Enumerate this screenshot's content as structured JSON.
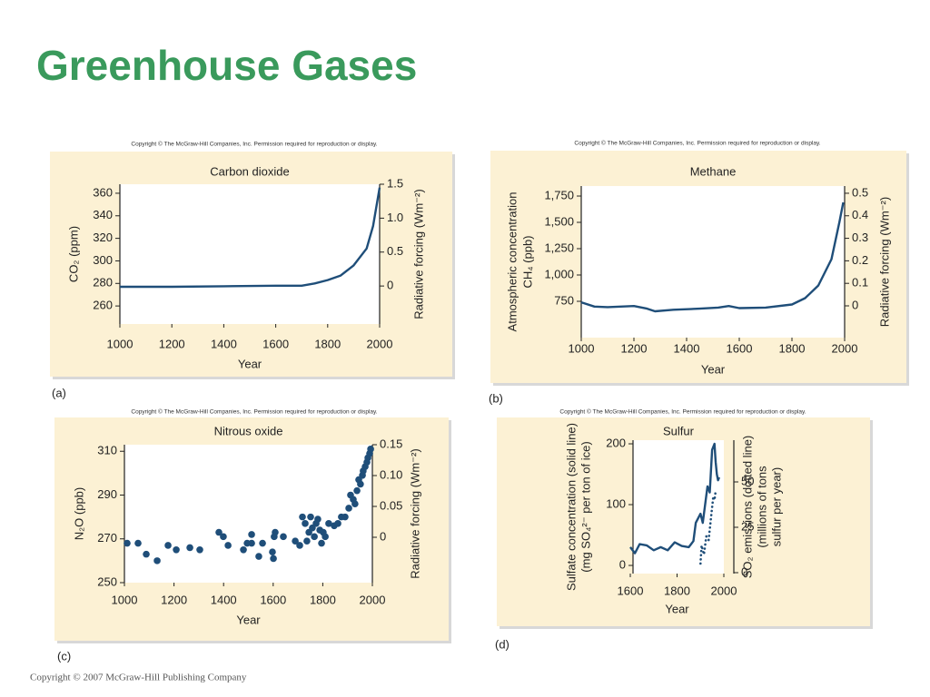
{
  "title": "Greenhouse Gases",
  "footer": "Copyright © 2007 McGraw-Hill Publishing Company",
  "chart_data": [
    {
      "type": "line",
      "panel_label": "(a)",
      "copyright": "Copyright © The McGraw-Hill Companies, Inc. Permission required for reproduction or display.",
      "title": "Carbon dioxide",
      "xlabel": "Year",
      "ylabel": [
        "CO₂ (ppm)"
      ],
      "y2label": [
        "Radiative forcing (Wm⁻²)"
      ],
      "xlim": [
        1000,
        2000
      ],
      "xticks": [
        1000,
        1200,
        1400,
        1600,
        1800,
        2000
      ],
      "ylim": [
        244,
        368
      ],
      "yticks": [
        260,
        280,
        300,
        320,
        340,
        360
      ],
      "y2lim": [
        -0.56,
        1.5
      ],
      "y2ticks": [
        0,
        0.5,
        {
          "value": 1,
          "label": "1.0"
        },
        1.5
      ],
      "series": [
        {
          "color": "#1f4e79",
          "x": [
            1000,
            1200,
            1400,
            1600,
            1700,
            1750,
            1800,
            1850,
            1900,
            1950,
            1975,
            2000
          ],
          "values": [
            277,
            277,
            277.5,
            278,
            278,
            280,
            283,
            287,
            296,
            311,
            331,
            365
          ]
        }
      ]
    },
    {
      "type": "line",
      "panel_label": "(b)",
      "copyright": "Copyright © The McGraw-Hill Companies, Inc. Permission required for reproduction or display.",
      "title": "Methane",
      "xlabel": "Year",
      "ylabel": [
        "Atmospheric concentration",
        "CH₄ (ppb)"
      ],
      "y2label": [
        "Radiative forcing (Wm⁻²)"
      ],
      "xlim": [
        1000,
        2000
      ],
      "xticks": [
        1000,
        1200,
        1400,
        1600,
        1800,
        2000
      ],
      "ylim": [
        405,
        1845
      ],
      "yticks": [
        750,
        {
          "value": 1000,
          "label": "1,000"
        },
        {
          "value": 1250,
          "label": "1,250"
        },
        {
          "value": 1500,
          "label": "1,500"
        },
        {
          "value": 1750,
          "label": "1,750"
        }
      ],
      "y2lim": [
        -0.141,
        0.532
      ],
      "y2ticks": [
        0,
        0.1,
        0.2,
        0.3,
        0.4,
        0.5
      ],
      "series": [
        {
          "color": "#1f4e79",
          "x": [
            1000,
            1050,
            1100,
            1200,
            1250,
            1280,
            1350,
            1450,
            1520,
            1560,
            1600,
            1700,
            1800,
            1850,
            1900,
            1950,
            1980,
            1995
          ],
          "values": [
            740,
            700,
            695,
            705,
            680,
            655,
            670,
            680,
            690,
            705,
            685,
            690,
            720,
            780,
            900,
            1150,
            1500,
            1690
          ]
        }
      ]
    },
    {
      "type": "scatter",
      "panel_label": "(c)",
      "copyright": "Copyright © The McGraw-Hill Companies, Inc. Permission required for reproduction or display.",
      "title": "Nitrous oxide",
      "xlabel": "Year",
      "ylabel": [
        "N₂O (ppb)"
      ],
      "y2label": [
        "Radiative forcing (Wm⁻²)"
      ],
      "xlim": [
        1000,
        2000
      ],
      "xticks": [
        1000,
        1200,
        1400,
        1600,
        1800,
        2000
      ],
      "ylim": [
        250,
        313
      ],
      "yticks": [
        250,
        270,
        290,
        310
      ],
      "y2lim": [
        -0.0735,
        0.15
      ],
      "y2ticks": [
        0,
        {
          "value": 0.05,
          "label": "0.05"
        },
        {
          "value": 0.1,
          "label": "0.10"
        },
        0.15
      ],
      "series": [
        {
          "color": "#1f4e79",
          "x": [
            1011,
            1055,
            1088,
            1132,
            1176,
            1209,
            1264,
            1304,
            1381,
            1399,
            1418,
            1480,
            1495,
            1513,
            1513,
            1542,
            1557,
            1597,
            1601,
            1608,
            1604,
            1641,
            1689,
            1707,
            1718,
            1729,
            1736,
            1744,
            1751,
            1758,
            1766,
            1773,
            1780,
            1788,
            1795,
            1802,
            1810,
            1824,
            1846,
            1861,
            1875,
            1890,
            1905,
            1912,
            1923,
            1930,
            1938,
            1945,
            1952,
            1960,
            1963,
            1971,
            1978,
            1982,
            1989,
            1993
          ],
          "values": [
            268,
            268,
            263,
            260,
            267,
            265,
            266,
            265,
            273,
            271,
            267,
            265,
            268,
            272,
            268,
            262,
            268,
            264,
            261,
            273,
            271,
            271,
            269,
            267,
            280,
            277,
            269,
            273,
            280,
            275,
            271,
            277,
            279,
            274,
            268,
            273,
            271,
            277,
            276,
            277,
            280,
            280,
            284,
            290,
            288,
            286,
            292,
            297,
            295,
            299,
            301,
            303,
            305,
            307,
            309,
            311
          ]
        }
      ]
    },
    {
      "type": "line",
      "panel_label": "(d)",
      "copyright": "Copyright © The McGraw-Hill Companies, Inc. Permission required for reproduction or display.",
      "title": "Sulfur",
      "xlabel": "Year",
      "ylabel": [
        "Sulfate concentration (solid line)",
        "(mg SO₄²⁻ per ton of ice)"
      ],
      "y2label": [
        "SO₂ emissions (dotted line)",
        "(millions of tons",
        "sulfur per year)"
      ],
      "xlim": [
        1600,
        2000
      ],
      "xticks": [
        1600,
        1800,
        2000
      ],
      "ylim": [
        -13.4,
        206
      ],
      "yticks": [
        0,
        100,
        200
      ],
      "y2lim": [
        -0.5,
        73
      ],
      "y2ticks": [
        0,
        25,
        50
      ],
      "series": [
        {
          "color": "#1f4e79",
          "x": [
            1600,
            1620,
            1640,
            1670,
            1700,
            1730,
            1760,
            1790,
            1820,
            1850,
            1870,
            1880,
            1900,
            1910,
            1930,
            1940,
            1950,
            1960,
            1965,
            1970,
            1975,
            1980
          ],
          "values": [
            30,
            20,
            35,
            33,
            25,
            30,
            25,
            38,
            32,
            30,
            40,
            70,
            85,
            70,
            130,
            120,
            190,
            200,
            170,
            150,
            140,
            145
          ]
        },
        {
          "color": "#1f4e79",
          "line_style": "dotted",
          "axis": "y2",
          "x": [
            1900,
            1905,
            1915,
            1925,
            1935,
            1945,
            1955,
            1960,
            1965
          ],
          "values": [
            5,
            15,
            10,
            20,
            18,
            30,
            42,
            40,
            45
          ]
        }
      ]
    }
  ]
}
